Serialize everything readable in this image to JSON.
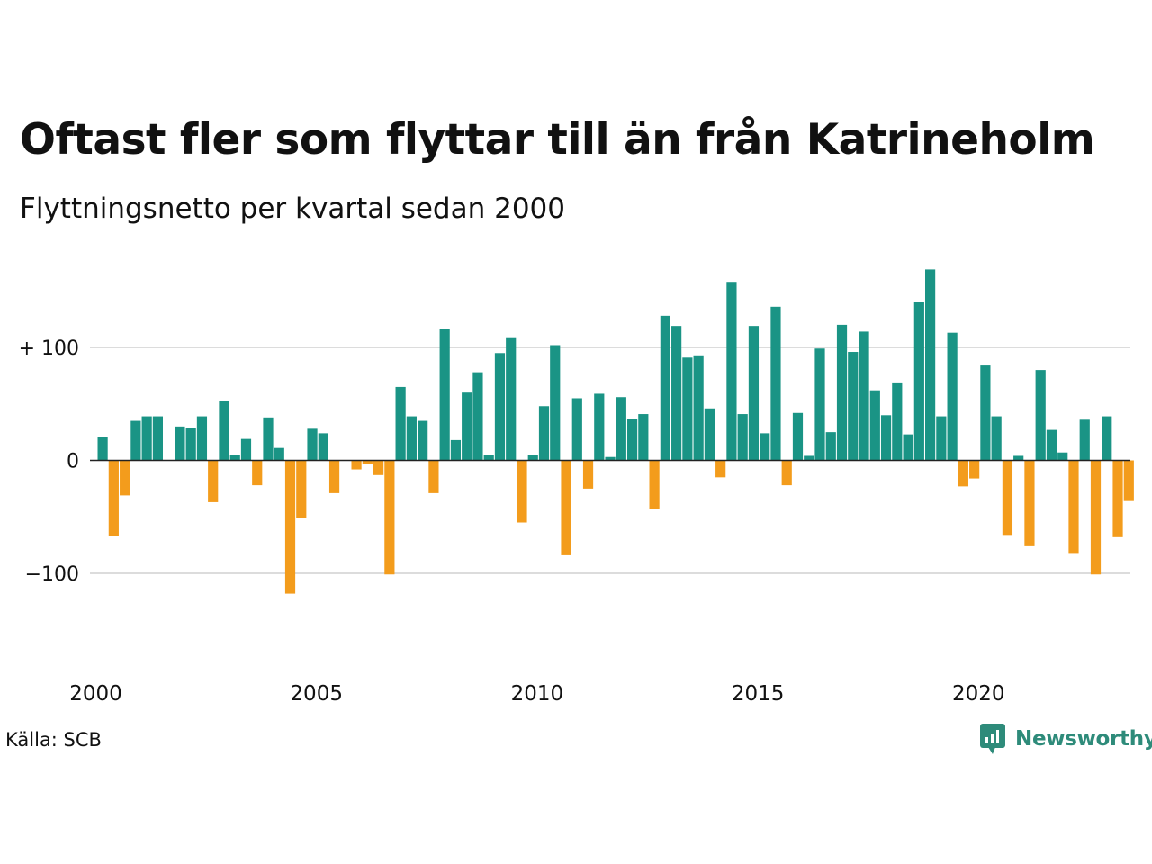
{
  "title": "Oftast fler som flyttar till än från Katrineholm",
  "subtitle": "Flyttningsnetto per kvartal sedan 2000",
  "source": "Källa: SCB",
  "brand": "Newsworthy",
  "colors": {
    "positive": "#1a9485",
    "negative": "#f39c1c",
    "grid": "#dcdcdc",
    "axis": "#222222"
  },
  "chart_data": {
    "type": "bar",
    "title": "Oftast fler som flyttar till än från Katrineholm",
    "subtitle": "Flyttningsnetto per kvartal sedan 2000",
    "xlabel": "",
    "ylabel": "",
    "x_start": "2000Q1",
    "x_ticks": [
      "2000",
      "2005",
      "2010",
      "2015",
      "2020"
    ],
    "y_ticks": [
      {
        "value": 100,
        "label": "+ 100"
      },
      {
        "value": 0,
        "label": "0"
      },
      {
        "value": -100,
        "label": "−100"
      }
    ],
    "ylim": [
      -155,
      175
    ],
    "grid": true,
    "series": [
      {
        "values": [
          21,
          -67,
          -31,
          35,
          39,
          39,
          0,
          30,
          29,
          39,
          -37,
          53,
          5,
          19,
          -22,
          38,
          11,
          -118,
          -51,
          28,
          24,
          -29,
          0,
          -8,
          -3,
          -13,
          -101,
          65,
          39,
          35,
          -29,
          116,
          18,
          60,
          78,
          5,
          95,
          109,
          -55,
          5,
          48,
          102,
          -84,
          55,
          -25,
          59,
          3,
          56,
          37,
          41,
          -43,
          128,
          119,
          91,
          93,
          46,
          -15,
          158,
          41,
          119,
          24,
          136,
          -22,
          42,
          4,
          99,
          25,
          120,
          96,
          114,
          62,
          40,
          69,
          23,
          140,
          169,
          39,
          113,
          -23,
          -16,
          84,
          39,
          -66,
          4,
          -76,
          80,
          27,
          7,
          -82,
          36,
          -101,
          39,
          -68,
          -36
        ]
      }
    ]
  }
}
